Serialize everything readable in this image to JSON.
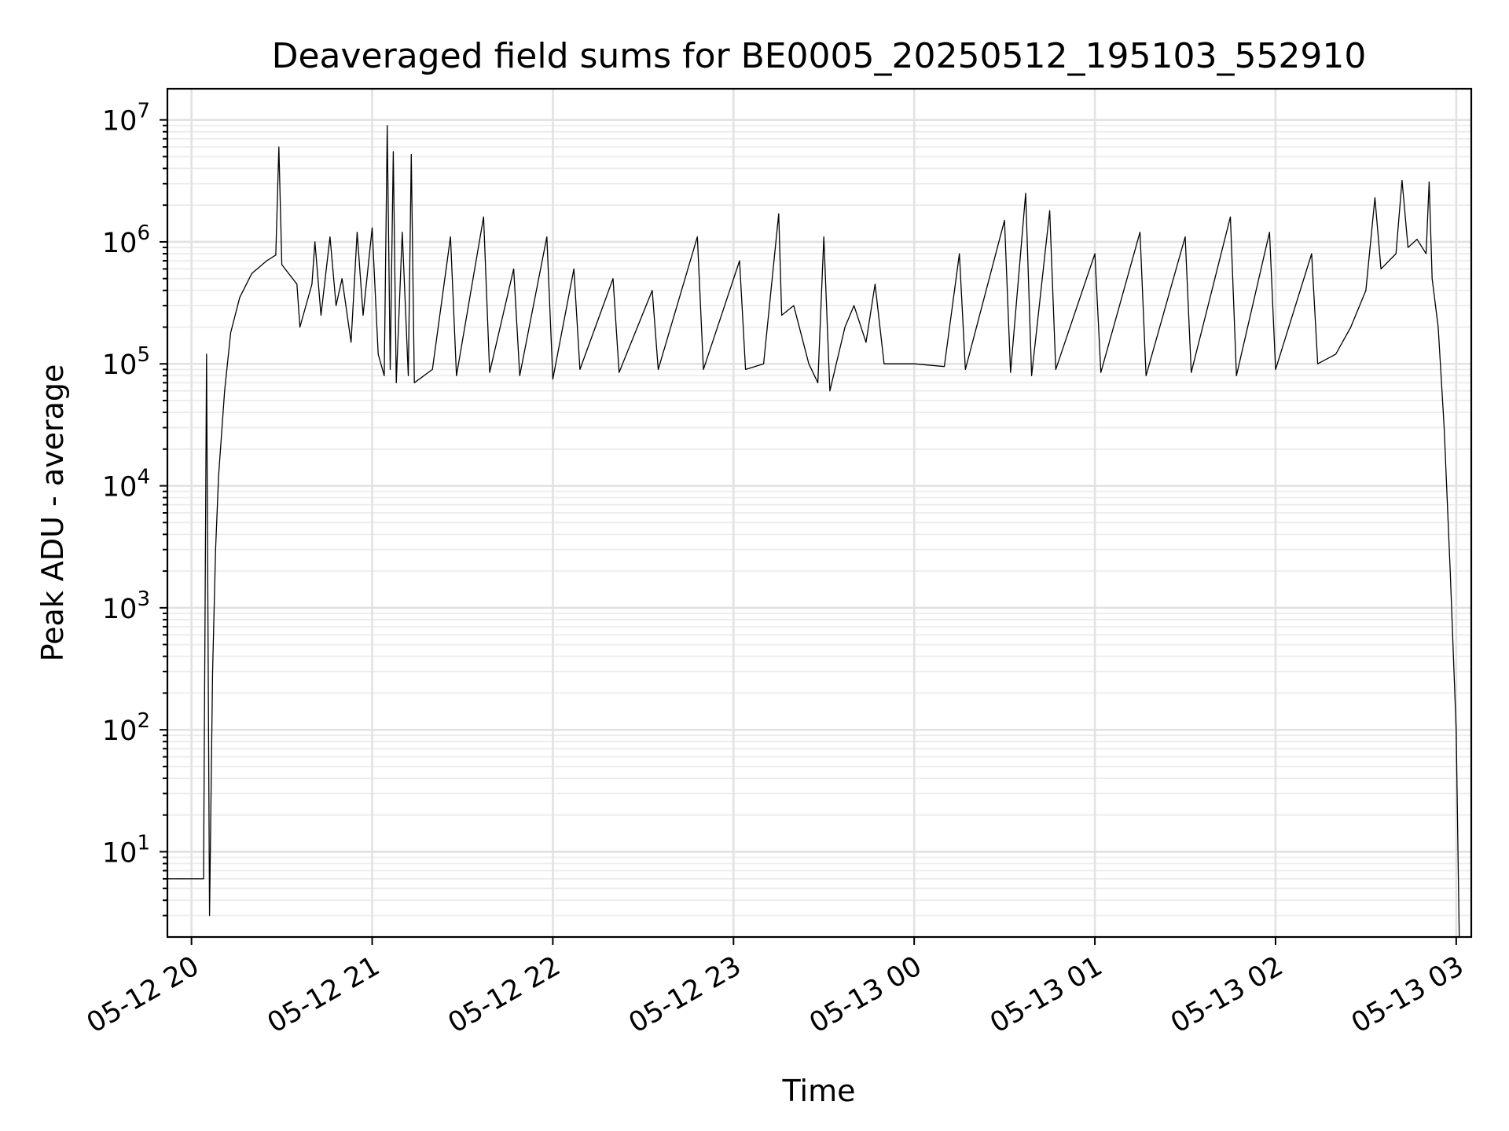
{
  "chart_data": {
    "type": "line",
    "title": "Deaveraged field sums for BE0005_20250512_195103_552910",
    "xlabel": "Time",
    "ylabel": "Peak ADU - average",
    "y_scale": "log",
    "ylim": [
      2,
      18000000
    ],
    "xlim": [
      "2025-05-12 19:52",
      "2025-05-13 03:05"
    ],
    "grid": true,
    "x_ticks": [
      {
        "value": "2025-05-12 20:00",
        "label": "05-12 20"
      },
      {
        "value": "2025-05-12 21:00",
        "label": "05-12 21"
      },
      {
        "value": "2025-05-12 22:00",
        "label": "05-12 22"
      },
      {
        "value": "2025-05-12 23:00",
        "label": "05-12 23"
      },
      {
        "value": "2025-05-13 00:00",
        "label": "05-13 00"
      },
      {
        "value": "2025-05-13 01:00",
        "label": "05-13 01"
      },
      {
        "value": "2025-05-13 02:00",
        "label": "05-13 02"
      },
      {
        "value": "2025-05-13 03:00",
        "label": "05-13 03"
      }
    ],
    "y_ticks": [
      {
        "value": 10,
        "base": "10",
        "exp": "1"
      },
      {
        "value": 100,
        "base": "10",
        "exp": "2"
      },
      {
        "value": 1000,
        "base": "10",
        "exp": "3"
      },
      {
        "value": 10000,
        "base": "10",
        "exp": "4"
      },
      {
        "value": 100000,
        "base": "10",
        "exp": "5"
      },
      {
        "value": 1000000,
        "base": "10",
        "exp": "6"
      },
      {
        "value": 10000000,
        "base": "10",
        "exp": "7"
      }
    ],
    "series": [
      {
        "color": "#000000",
        "points": [
          [
            "2025-05-12 19:52",
            6
          ],
          [
            "2025-05-12 19:58",
            6
          ],
          [
            "2025-05-12 20:04",
            6
          ],
          [
            "2025-05-12 20:05",
            120000
          ],
          [
            "2025-05-12 20:06",
            3
          ],
          [
            "2025-05-12 20:07",
            300
          ],
          [
            "2025-05-12 20:08",
            3000
          ],
          [
            "2025-05-12 20:09",
            12000
          ],
          [
            "2025-05-12 20:11",
            60000
          ],
          [
            "2025-05-12 20:13",
            180000
          ],
          [
            "2025-05-12 20:16",
            350000
          ],
          [
            "2025-05-12 20:20",
            550000
          ],
          [
            "2025-05-12 20:25",
            700000
          ],
          [
            "2025-05-12 20:28",
            780000
          ],
          [
            "2025-05-12 20:29",
            6000000
          ],
          [
            "2025-05-12 20:30",
            650000
          ],
          [
            "2025-05-12 20:35",
            450000
          ],
          [
            "2025-05-12 20:36",
            200000
          ],
          [
            "2025-05-12 20:40",
            450000
          ],
          [
            "2025-05-12 20:41",
            1000000
          ],
          [
            "2025-05-12 20:43",
            250000
          ],
          [
            "2025-05-12 20:46",
            1100000
          ],
          [
            "2025-05-12 20:48",
            300000
          ],
          [
            "2025-05-12 20:50",
            500000
          ],
          [
            "2025-05-12 20:53",
            150000
          ],
          [
            "2025-05-12 20:55",
            1200000
          ],
          [
            "2025-05-12 20:57",
            250000
          ],
          [
            "2025-05-12 21:00",
            1300000
          ],
          [
            "2025-05-12 21:02",
            120000
          ],
          [
            "2025-05-12 21:04",
            80000
          ],
          [
            "2025-05-12 21:05",
            9000000
          ],
          [
            "2025-05-12 21:06",
            90000
          ],
          [
            "2025-05-12 21:07",
            5500000
          ],
          [
            "2025-05-12 21:08",
            70000
          ],
          [
            "2025-05-12 21:10",
            1200000
          ],
          [
            "2025-05-12 21:12",
            80000
          ],
          [
            "2025-05-12 21:13",
            5200000
          ],
          [
            "2025-05-12 21:14",
            70000
          ],
          [
            "2025-05-12 21:20",
            90000
          ],
          [
            "2025-05-12 21:26",
            1100000
          ],
          [
            "2025-05-12 21:28",
            80000
          ],
          [
            "2025-05-12 21:37",
            1600000
          ],
          [
            "2025-05-12 21:39",
            85000
          ],
          [
            "2025-05-12 21:47",
            600000
          ],
          [
            "2025-05-12 21:49",
            80000
          ],
          [
            "2025-05-12 21:58",
            1100000
          ],
          [
            "2025-05-12 22:00",
            75000
          ],
          [
            "2025-05-12 22:07",
            600000
          ],
          [
            "2025-05-12 22:09",
            90000
          ],
          [
            "2025-05-12 22:20",
            500000
          ],
          [
            "2025-05-12 22:22",
            85000
          ],
          [
            "2025-05-12 22:33",
            400000
          ],
          [
            "2025-05-12 22:35",
            90000
          ],
          [
            "2025-05-12 22:48",
            1100000
          ],
          [
            "2025-05-12 22:50",
            90000
          ],
          [
            "2025-05-12 23:02",
            700000
          ],
          [
            "2025-05-12 23:04",
            90000
          ],
          [
            "2025-05-12 23:10",
            100000
          ],
          [
            "2025-05-12 23:15",
            1700000
          ],
          [
            "2025-05-12 23:16",
            250000
          ],
          [
            "2025-05-12 23:20",
            300000
          ],
          [
            "2025-05-12 23:25",
            100000
          ],
          [
            "2025-05-12 23:28",
            70000
          ],
          [
            "2025-05-12 23:30",
            1100000
          ],
          [
            "2025-05-12 23:32",
            60000
          ],
          [
            "2025-05-12 23:37",
            200000
          ],
          [
            "2025-05-12 23:40",
            300000
          ],
          [
            "2025-05-12 23:44",
            150000
          ],
          [
            "2025-05-12 23:47",
            450000
          ],
          [
            "2025-05-12 23:50",
            100000
          ],
          [
            "2025-05-13 00:00",
            100000
          ],
          [
            "2025-05-13 00:10",
            95000
          ],
          [
            "2025-05-13 00:15",
            800000
          ],
          [
            "2025-05-13 00:17",
            90000
          ],
          [
            "2025-05-13 00:30",
            1500000
          ],
          [
            "2025-05-13 00:32",
            85000
          ],
          [
            "2025-05-13 00:37",
            2500000
          ],
          [
            "2025-05-13 00:39",
            80000
          ],
          [
            "2025-05-13 00:45",
            1800000
          ],
          [
            "2025-05-13 00:47",
            90000
          ],
          [
            "2025-05-13 01:00",
            800000
          ],
          [
            "2025-05-13 01:02",
            85000
          ],
          [
            "2025-05-13 01:15",
            1200000
          ],
          [
            "2025-05-13 01:17",
            80000
          ],
          [
            "2025-05-13 01:30",
            1100000
          ],
          [
            "2025-05-13 01:32",
            85000
          ],
          [
            "2025-05-13 01:45",
            1600000
          ],
          [
            "2025-05-13 01:47",
            80000
          ],
          [
            "2025-05-13 01:58",
            1200000
          ],
          [
            "2025-05-13 02:00",
            90000
          ],
          [
            "2025-05-13 02:12",
            800000
          ],
          [
            "2025-05-13 02:14",
            100000
          ],
          [
            "2025-05-13 02:20",
            120000
          ],
          [
            "2025-05-13 02:25",
            200000
          ],
          [
            "2025-05-13 02:30",
            400000
          ],
          [
            "2025-05-13 02:33",
            2300000
          ],
          [
            "2025-05-13 02:35",
            600000
          ],
          [
            "2025-05-13 02:40",
            800000
          ],
          [
            "2025-05-13 02:42",
            3200000
          ],
          [
            "2025-05-13 02:44",
            900000
          ],
          [
            "2025-05-13 02:47",
            1050000
          ],
          [
            "2025-05-13 02:50",
            800000
          ],
          [
            "2025-05-13 02:51",
            3100000
          ],
          [
            "2025-05-13 02:52",
            500000
          ],
          [
            "2025-05-13 02:54",
            200000
          ],
          [
            "2025-05-13 02:56",
            30000
          ],
          [
            "2025-05-13 02:58",
            2000
          ],
          [
            "2025-05-13 03:00",
            100
          ],
          [
            "2025-05-13 03:01",
            2
          ]
        ]
      }
    ]
  }
}
